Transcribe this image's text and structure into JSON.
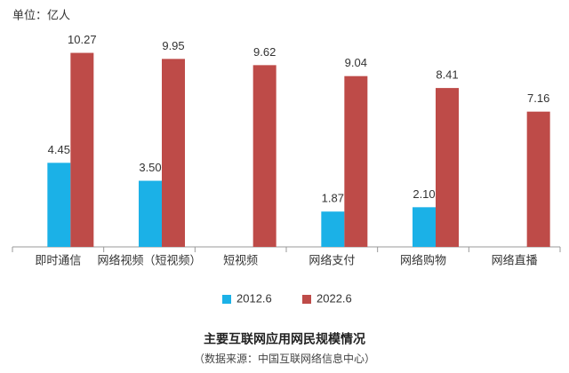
{
  "chart_data": {
    "type": "bar",
    "unit_label": "单位：亿人",
    "title": "主要互联网应用网民规模情况",
    "subtitle": "（数据来源：中国互联网络信息中心）",
    "categories": [
      "即时通信",
      "网络视频（短视频）",
      "短视频",
      "网络支付",
      "网络购物",
      "网络直播"
    ],
    "series": [
      {
        "name": "2012.6",
        "color": "#1bb1e7",
        "values": [
          4.45,
          3.5,
          null,
          1.87,
          2.1,
          null
        ],
        "value_labels": [
          "4.45",
          "3.50",
          null,
          "1.87",
          "2.10",
          null
        ]
      },
      {
        "name": "2022.6",
        "color": "#be4b48",
        "values": [
          10.27,
          9.95,
          9.62,
          9.04,
          8.41,
          7.16
        ]
      }
    ],
    "ylim": [
      0,
      11
    ],
    "legend": "bottom"
  }
}
